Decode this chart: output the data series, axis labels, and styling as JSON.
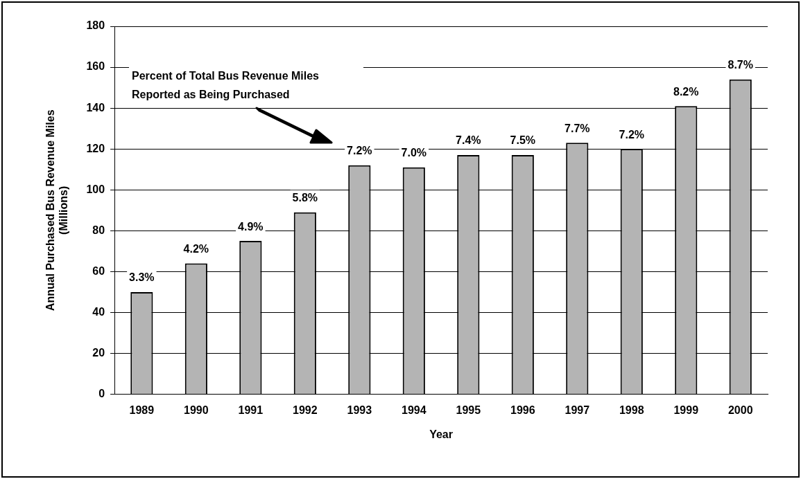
{
  "chart_data": {
    "type": "bar",
    "xlabel": "Year",
    "ylabel": "Annual Purchased Bus Revenue Miles (Millions)",
    "categories": [
      "1989",
      "1990",
      "1991",
      "1992",
      "1993",
      "1994",
      "1995",
      "1996",
      "1997",
      "1998",
      "1999",
      "2000"
    ],
    "values": [
      50,
      64,
      75,
      89,
      112,
      111,
      117,
      117,
      123,
      120,
      141,
      154
    ],
    "color": "#b4b4b4",
    "ylim": [
      0,
      180
    ],
    "yticks": [
      0,
      20,
      40,
      60,
      80,
      100,
      120,
      140,
      160,
      180
    ],
    "grid": "y",
    "legend": false,
    "annotations": [
      "Percent of Total Bus Revenue Miles Reported as Being Purchased",
      {
        "text": "3.3%",
        "x": "1989",
        "y": 50
      },
      {
        "text": "4.2%",
        "x": "1990",
        "y": 64
      },
      {
        "text": "4.9%",
        "x": "1991",
        "y": 75
      },
      {
        "text": "5.8%",
        "x": "1992",
        "y": 89
      },
      {
        "text": "7.2%",
        "x": "1993",
        "y": 112
      },
      {
        "text": "7.0%",
        "x": "1994",
        "y": 111
      },
      {
        "text": "7.4%",
        "x": "1995",
        "y": 117
      },
      {
        "text": "7.5%",
        "x": "1996",
        "y": 117
      },
      {
        "text": "7.7%",
        "x": "1997",
        "y": 123
      },
      {
        "text": "7.2%",
        "x": "1998",
        "y": 120
      },
      {
        "text": "8.2%",
        "x": "1999",
        "y": 141
      },
      {
        "text": "8.7%",
        "x": "2000",
        "y": 154
      }
    ]
  }
}
